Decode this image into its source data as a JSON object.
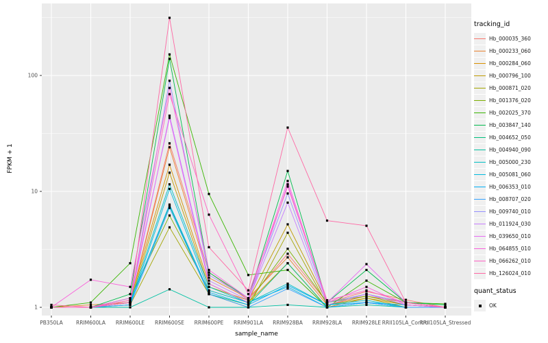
{
  "colors": {
    "panel_background": "#ebebeb",
    "gridline": "#ffffff",
    "tick_text": "#4d4d4d",
    "axis_title_text": "#000000",
    "point_marker": "#000000",
    "legend_key_background": "#f0f0f0"
  },
  "legend": {
    "tracking": {
      "title": "tracking_id"
    },
    "quant": {
      "title": "quant_status",
      "items": [
        {
          "label": "OK",
          "shape": "filled-square",
          "color": "#000000"
        }
      ]
    }
  },
  "chart_data": {
    "type": "line",
    "title": "",
    "xlabel": "sample_name",
    "ylabel": "FPKM + 1",
    "yscale": "log10",
    "yticks": [
      1,
      10,
      100
    ],
    "yminor": [
      3.162,
      31.62,
      316.2
    ],
    "ylim": [
      1,
      420
    ],
    "grid": "white major+minor gridlines on grey panel",
    "legend_position": "right",
    "point_shape": "black-square",
    "categories": [
      "PB350LA",
      "RRIM600LA",
      "RRIM600LE",
      "RRIM600SE",
      "RRIM600PE",
      "RRIM901LA",
      "RRIM928BA",
      "RRIM928LA",
      "RRIM928LE",
      "RRII105LA_Control",
      "RRII105LA_Stressed"
    ],
    "series": [
      {
        "name": "Hb_000035_360",
        "color": "#F8766D",
        "values": [
          1.0,
          1.0,
          1.1,
          26,
          2.0,
          1.16,
          2.9,
          1.1,
          1.37,
          1.16,
          1.0
        ]
      },
      {
        "name": "Hb_000233_060",
        "color": "#EA8331",
        "values": [
          1.0,
          1.05,
          1.1,
          24,
          1.8,
          1.2,
          2.7,
          1.05,
          1.25,
          1.1,
          1.0
        ]
      },
      {
        "name": "Hb_000284_060",
        "color": "#D89000",
        "values": [
          1.0,
          1.0,
          1.15,
          17,
          1.6,
          1.1,
          2.4,
          1.0,
          1.2,
          1.05,
          1.0
        ]
      },
      {
        "name": "Hb_000796_100",
        "color": "#C09B00",
        "values": [
          1.0,
          1.0,
          1.1,
          14.5,
          1.5,
          1.15,
          5.2,
          1.1,
          1.3,
          1.1,
          1.0
        ]
      },
      {
        "name": "Hb_000871_020",
        "color": "#A3A500",
        "values": [
          1.0,
          1.0,
          1.05,
          4.9,
          1.3,
          1.0,
          4.4,
          1.05,
          1.2,
          1.0,
          1.0
        ]
      },
      {
        "name": "Hb_001376_020",
        "color": "#7CAE00",
        "values": [
          1.0,
          1.0,
          1.2,
          6.2,
          1.4,
          1.1,
          3.2,
          1.1,
          1.25,
          1.05,
          1.0
        ]
      },
      {
        "name": "Hb_002025_370",
        "color": "#39B600",
        "values": [
          1.0,
          1.1,
          2.4,
          152,
          9.5,
          1.9,
          2.1,
          1.0,
          1.7,
          1.1,
          1.07
        ]
      },
      {
        "name": "Hb_003847_140",
        "color": "#00BB4E",
        "values": [
          1.0,
          1.0,
          1.3,
          139,
          2.0,
          1.2,
          15,
          1.1,
          2.1,
          1.1,
          1.05
        ]
      },
      {
        "name": "Hb_004652_050",
        "color": "#00BF7D",
        "values": [
          1.0,
          1.0,
          1.1,
          7.5,
          1.3,
          1.05,
          2.4,
          1.0,
          1.1,
          1.0,
          1.0
        ]
      },
      {
        "name": "Hb_004940_090",
        "color": "#00C1A3",
        "values": [
          1.0,
          1.0,
          1.0,
          1.43,
          1.0,
          1.0,
          1.05,
          1.0,
          1.05,
          1.0,
          1.0
        ]
      },
      {
        "name": "Hb_005000_230",
        "color": "#00BFC4",
        "values": [
          1.0,
          1.0,
          1.1,
          11.5,
          1.5,
          1.1,
          1.6,
          1.05,
          1.15,
          1.0,
          1.0
        ]
      },
      {
        "name": "Hb_005081_060",
        "color": "#00BAE0",
        "values": [
          1.0,
          1.0,
          1.05,
          10.5,
          1.4,
          1.1,
          1.5,
          1.0,
          1.1,
          1.0,
          1.0
        ]
      },
      {
        "name": "Hb_006353_010",
        "color": "#00B0F6",
        "values": [
          1.0,
          1.0,
          1.1,
          7.7,
          1.35,
          1.05,
          1.55,
          1.05,
          1.1,
          1.05,
          1.0
        ]
      },
      {
        "name": "Hb_008707_020",
        "color": "#35A2FF",
        "values": [
          1.0,
          1.0,
          1.05,
          7.2,
          1.3,
          1.0,
          1.45,
          1.0,
          1.1,
          1.0,
          1.0
        ]
      },
      {
        "name": "Hb_009740_010",
        "color": "#9590FF",
        "values": [
          1.0,
          1.0,
          1.1,
          90,
          1.9,
          1.2,
          9.6,
          1.1,
          1.3,
          1.1,
          1.0
        ]
      },
      {
        "name": "Hb_011924_030",
        "color": "#C77CFF",
        "values": [
          1.0,
          1.0,
          1.1,
          45,
          1.7,
          1.15,
          8.0,
          1.05,
          1.3,
          1.05,
          1.0
        ]
      },
      {
        "name": "Hb_039650_010",
        "color": "#E76BF3",
        "values": [
          1.0,
          1.0,
          1.2,
          43,
          1.6,
          1.1,
          11.5,
          1.1,
          2.36,
          1.1,
          1.0
        ]
      },
      {
        "name": "Hb_064855_010",
        "color": "#FA62DB",
        "values": [
          1.0,
          1.73,
          1.5,
          78,
          2.1,
          1.2,
          12.3,
          1.1,
          1.5,
          1.05,
          1.0
        ]
      },
      {
        "name": "Hb_066262_010",
        "color": "#FF61C3",
        "values": [
          1.0,
          1.0,
          1.15,
          69,
          6.3,
          1.3,
          11.0,
          1.15,
          1.4,
          1.1,
          1.0
        ]
      },
      {
        "name": "Hb_126024_010",
        "color": "#FF67A4",
        "values": [
          1.05,
          1.0,
          1.1,
          314,
          3.3,
          1.4,
          35.5,
          5.6,
          5.05,
          1.1,
          1.0
        ]
      }
    ]
  }
}
